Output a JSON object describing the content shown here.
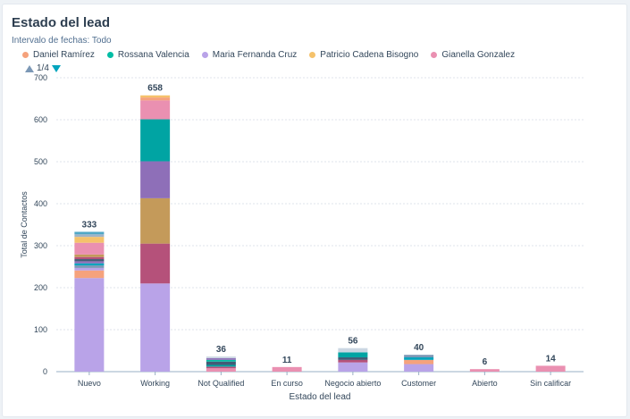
{
  "title": "Estado del lead",
  "filter": {
    "label": "Intervalo de fechas:",
    "value": "Todo"
  },
  "legend": [
    {
      "name": "Daniel Ramírez",
      "color": "#f5a27c"
    },
    {
      "name": "Rossana Valencia",
      "color": "#00bda5"
    },
    {
      "name": "Maria Fernanda Cruz",
      "color": "#b9a3e8"
    },
    {
      "name": "Patricio Cadena Bisogno",
      "color": "#f5c26b"
    },
    {
      "name": "Gianella Gonzalez",
      "color": "#ea90b1"
    }
  ],
  "pager": {
    "text": "1/4"
  },
  "chart_data": {
    "type": "bar",
    "stacked": true,
    "categories": [
      "Nuevo",
      "Working",
      "Not Qualified",
      "En curso",
      "Negocio abierto",
      "Customer",
      "Abierto",
      "Sin calificar"
    ],
    "totals": [
      333,
      658,
      36,
      11,
      56,
      40,
      6,
      14
    ],
    "xlabel": "Estado del lead",
    "ylabel": "Total de Contactos",
    "ylim": [
      0,
      700
    ],
    "yticks": [
      0,
      100,
      200,
      300,
      400,
      500,
      600,
      700
    ],
    "grid": true,
    "segments": [
      [
        {
          "value": 223,
          "color": "#b9a3e8"
        },
        {
          "value": 18,
          "color": "#f5a27c"
        },
        {
          "value": 6,
          "color": "#b9a3e8"
        },
        {
          "value": 6,
          "color": "#7c98b6"
        },
        {
          "value": 5,
          "color": "#00a4bd"
        },
        {
          "value": 5,
          "color": "#8e6fb8"
        },
        {
          "value": 5,
          "color": "#425b76"
        },
        {
          "value": 5,
          "color": "#b5517a"
        },
        {
          "value": 6,
          "color": "#c49a5a"
        },
        {
          "value": 28,
          "color": "#ea90b1"
        },
        {
          "value": 14,
          "color": "#f5c26b"
        },
        {
          "value": 6,
          "color": "#9fb3c8"
        },
        {
          "value": 6,
          "color": "#51a8c6"
        }
      ],
      [
        {
          "value": 210,
          "color": "#b9a3e8"
        },
        {
          "value": 95,
          "color": "#b5517a"
        },
        {
          "value": 108,
          "color": "#c49a5a"
        },
        {
          "value": 88,
          "color": "#8e6fb8"
        },
        {
          "value": 100,
          "color": "#00a4a3"
        },
        {
          "value": 45,
          "color": "#ea90b1"
        },
        {
          "value": 7,
          "color": "#f5a27c"
        },
        {
          "value": 5,
          "color": "#f5c26b"
        }
      ],
      [
        {
          "value": 8,
          "color": "#ea90b1"
        },
        {
          "value": 4,
          "color": "#b5517a"
        },
        {
          "value": 4,
          "color": "#00a4a3"
        },
        {
          "value": 8,
          "color": "#425b76"
        },
        {
          "value": 4,
          "color": "#00bda5"
        },
        {
          "value": 4,
          "color": "#8e6fb8"
        },
        {
          "value": 4,
          "color": "#cbd6e2"
        }
      ],
      [
        {
          "value": 11,
          "color": "#ea90b1"
        }
      ],
      [
        {
          "value": 22,
          "color": "#b9a3e8"
        },
        {
          "value": 6,
          "color": "#b5517a"
        },
        {
          "value": 6,
          "color": "#425b76"
        },
        {
          "value": 12,
          "color": "#00a4a3"
        },
        {
          "value": 10,
          "color": "#cbd6e2"
        }
      ],
      [
        {
          "value": 18,
          "color": "#b9a3e8"
        },
        {
          "value": 10,
          "color": "#f5a27c"
        },
        {
          "value": 6,
          "color": "#00a4bd"
        },
        {
          "value": 6,
          "color": "#7c98b6"
        }
      ],
      [
        {
          "value": 6,
          "color": "#ea90b1"
        }
      ],
      [
        {
          "value": 14,
          "color": "#ea90b1"
        }
      ]
    ]
  }
}
